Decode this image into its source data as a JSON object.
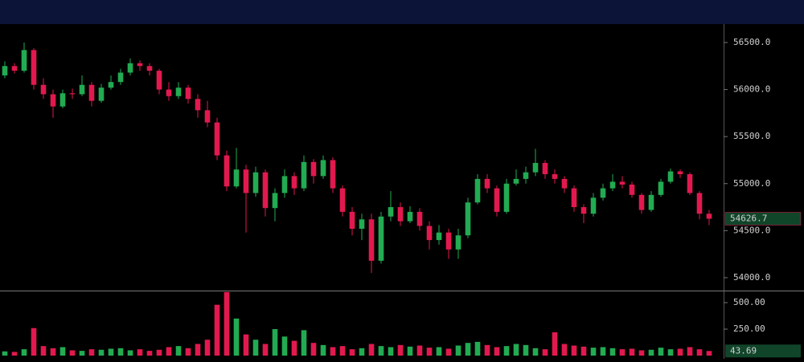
{
  "chart_data": {
    "type": "candlestick",
    "up_color": "#22ab52",
    "down_color": "#e2194f",
    "ylim": [
      53863,
      56696
    ],
    "yticks": [
      {
        "value": 54000,
        "label": "54000.0"
      },
      {
        "value": 54500,
        "label": "54500.0"
      },
      {
        "value": 55000,
        "label": "55000.0"
      },
      {
        "value": 55500,
        "label": "55500.0"
      },
      {
        "value": 56000,
        "label": "56000.0"
      },
      {
        "value": 56500,
        "label": "56500.0"
      }
    ],
    "volume_ylim": [
      -30,
      614
    ],
    "volume_yticks": [
      {
        "value": 250,
        "label": "250.00"
      },
      {
        "value": 500,
        "label": "500.00"
      }
    ],
    "ohlc": [
      [
        56150,
        56300,
        56120,
        56250
      ],
      [
        56250,
        56280,
        56170,
        56200
      ],
      [
        56200,
        56500,
        56180,
        56420
      ],
      [
        56420,
        56440,
        56000,
        56050
      ],
      [
        56050,
        56120,
        55900,
        55950
      ],
      [
        55950,
        56000,
        55700,
        55820
      ],
      [
        55820,
        56000,
        55800,
        55960
      ],
      [
        55960,
        56010,
        55900,
        55950
      ],
      [
        55950,
        56150,
        55930,
        56050
      ],
      [
        56050,
        56080,
        55820,
        55880
      ],
      [
        55880,
        56060,
        55860,
        56020
      ],
      [
        56020,
        56150,
        56000,
        56080
      ],
      [
        56080,
        56220,
        56050,
        56180
      ],
      [
        56180,
        56330,
        56150,
        56280
      ],
      [
        56280,
        56310,
        56200,
        56250
      ],
      [
        56250,
        56280,
        56150,
        56200
      ],
      [
        56200,
        56220,
        55950,
        56000
      ],
      [
        56000,
        56080,
        55880,
        55930
      ],
      [
        55930,
        56080,
        55900,
        56020
      ],
      [
        56020,
        56050,
        55850,
        55900
      ],
      [
        55900,
        55950,
        55700,
        55780
      ],
      [
        55780,
        55880,
        55600,
        55650
      ],
      [
        55650,
        55700,
        55250,
        55300
      ],
      [
        55300,
        55350,
        54920,
        54970
      ],
      [
        54970,
        55380,
        54950,
        55150
      ],
      [
        55150,
        55200,
        54480,
        54900
      ],
      [
        54900,
        55180,
        54860,
        55120
      ],
      [
        55120,
        55150,
        54650,
        54740
      ],
      [
        54740,
        54950,
        54600,
        54900
      ],
      [
        54900,
        55150,
        54850,
        55080
      ],
      [
        55080,
        55120,
        54880,
        54950
      ],
      [
        54950,
        55300,
        54920,
        55230
      ],
      [
        55230,
        55260,
        55000,
        55080
      ],
      [
        55080,
        55300,
        55050,
        55250
      ],
      [
        55250,
        55280,
        54900,
        54950
      ],
      [
        54950,
        54980,
        54650,
        54700
      ],
      [
        54700,
        54750,
        54450,
        54520
      ],
      [
        54520,
        54680,
        54400,
        54620
      ],
      [
        54620,
        54680,
        54050,
        54180
      ],
      [
        54180,
        54700,
        54150,
        54650
      ],
      [
        54650,
        54920,
        54600,
        54750
      ],
      [
        54750,
        54800,
        54550,
        54600
      ],
      [
        54600,
        54760,
        54580,
        54700
      ],
      [
        54700,
        54740,
        54500,
        54550
      ],
      [
        54550,
        54600,
        54300,
        54400
      ],
      [
        54400,
        54560,
        54350,
        54480
      ],
      [
        54480,
        54520,
        54200,
        54300
      ],
      [
        54300,
        54520,
        54200,
        54450
      ],
      [
        54450,
        54850,
        54420,
        54800
      ],
      [
        54800,
        55100,
        54780,
        55050
      ],
      [
        55050,
        55100,
        54900,
        54950
      ],
      [
        54950,
        54980,
        54650,
        54700
      ],
      [
        54700,
        55050,
        54680,
        55000
      ],
      [
        55000,
        55150,
        54980,
        55050
      ],
      [
        55050,
        55180,
        55000,
        55120
      ],
      [
        55120,
        55370,
        55080,
        55220
      ],
      [
        55220,
        55250,
        55050,
        55100
      ],
      [
        55100,
        55150,
        55000,
        55050
      ],
      [
        55050,
        55080,
        54900,
        54950
      ],
      [
        54950,
        54980,
        54700,
        54750
      ],
      [
        54750,
        54780,
        54580,
        54680
      ],
      [
        54680,
        54900,
        54650,
        54850
      ],
      [
        54850,
        55000,
        54820,
        54950
      ],
      [
        54950,
        55100,
        54920,
        55020
      ],
      [
        55020,
        55080,
        54950,
        54990
      ],
      [
        54990,
        55020,
        54850,
        54880
      ],
      [
        54880,
        54900,
        54680,
        54720
      ],
      [
        54720,
        54920,
        54700,
        54880
      ],
      [
        54880,
        55050,
        54860,
        55020
      ],
      [
        55020,
        55160,
        55000,
        55130
      ],
      [
        55130,
        55150,
        55060,
        55100
      ],
      [
        55100,
        55120,
        54880,
        54900
      ],
      [
        54900,
        54920,
        54620,
        54680
      ],
      [
        54680,
        54720,
        54560,
        54626.7
      ]
    ],
    "volumes": [
      40,
      35,
      60,
      260,
      90,
      70,
      80,
      50,
      45,
      60,
      55,
      65,
      70,
      50,
      60,
      45,
      55,
      80,
      90,
      70,
      110,
      150,
      480,
      600,
      350,
      200,
      150,
      110,
      250,
      180,
      140,
      240,
      120,
      100,
      80,
      90,
      60,
      70,
      110,
      90,
      80,
      100,
      85,
      95,
      75,
      80,
      65,
      95,
      120,
      130,
      100,
      80,
      90,
      110,
      100,
      70,
      60,
      220,
      110,
      95,
      85,
      75,
      80,
      70,
      60,
      65,
      50,
      55,
      75,
      60,
      65,
      80,
      60,
      43.69
    ]
  }
}
